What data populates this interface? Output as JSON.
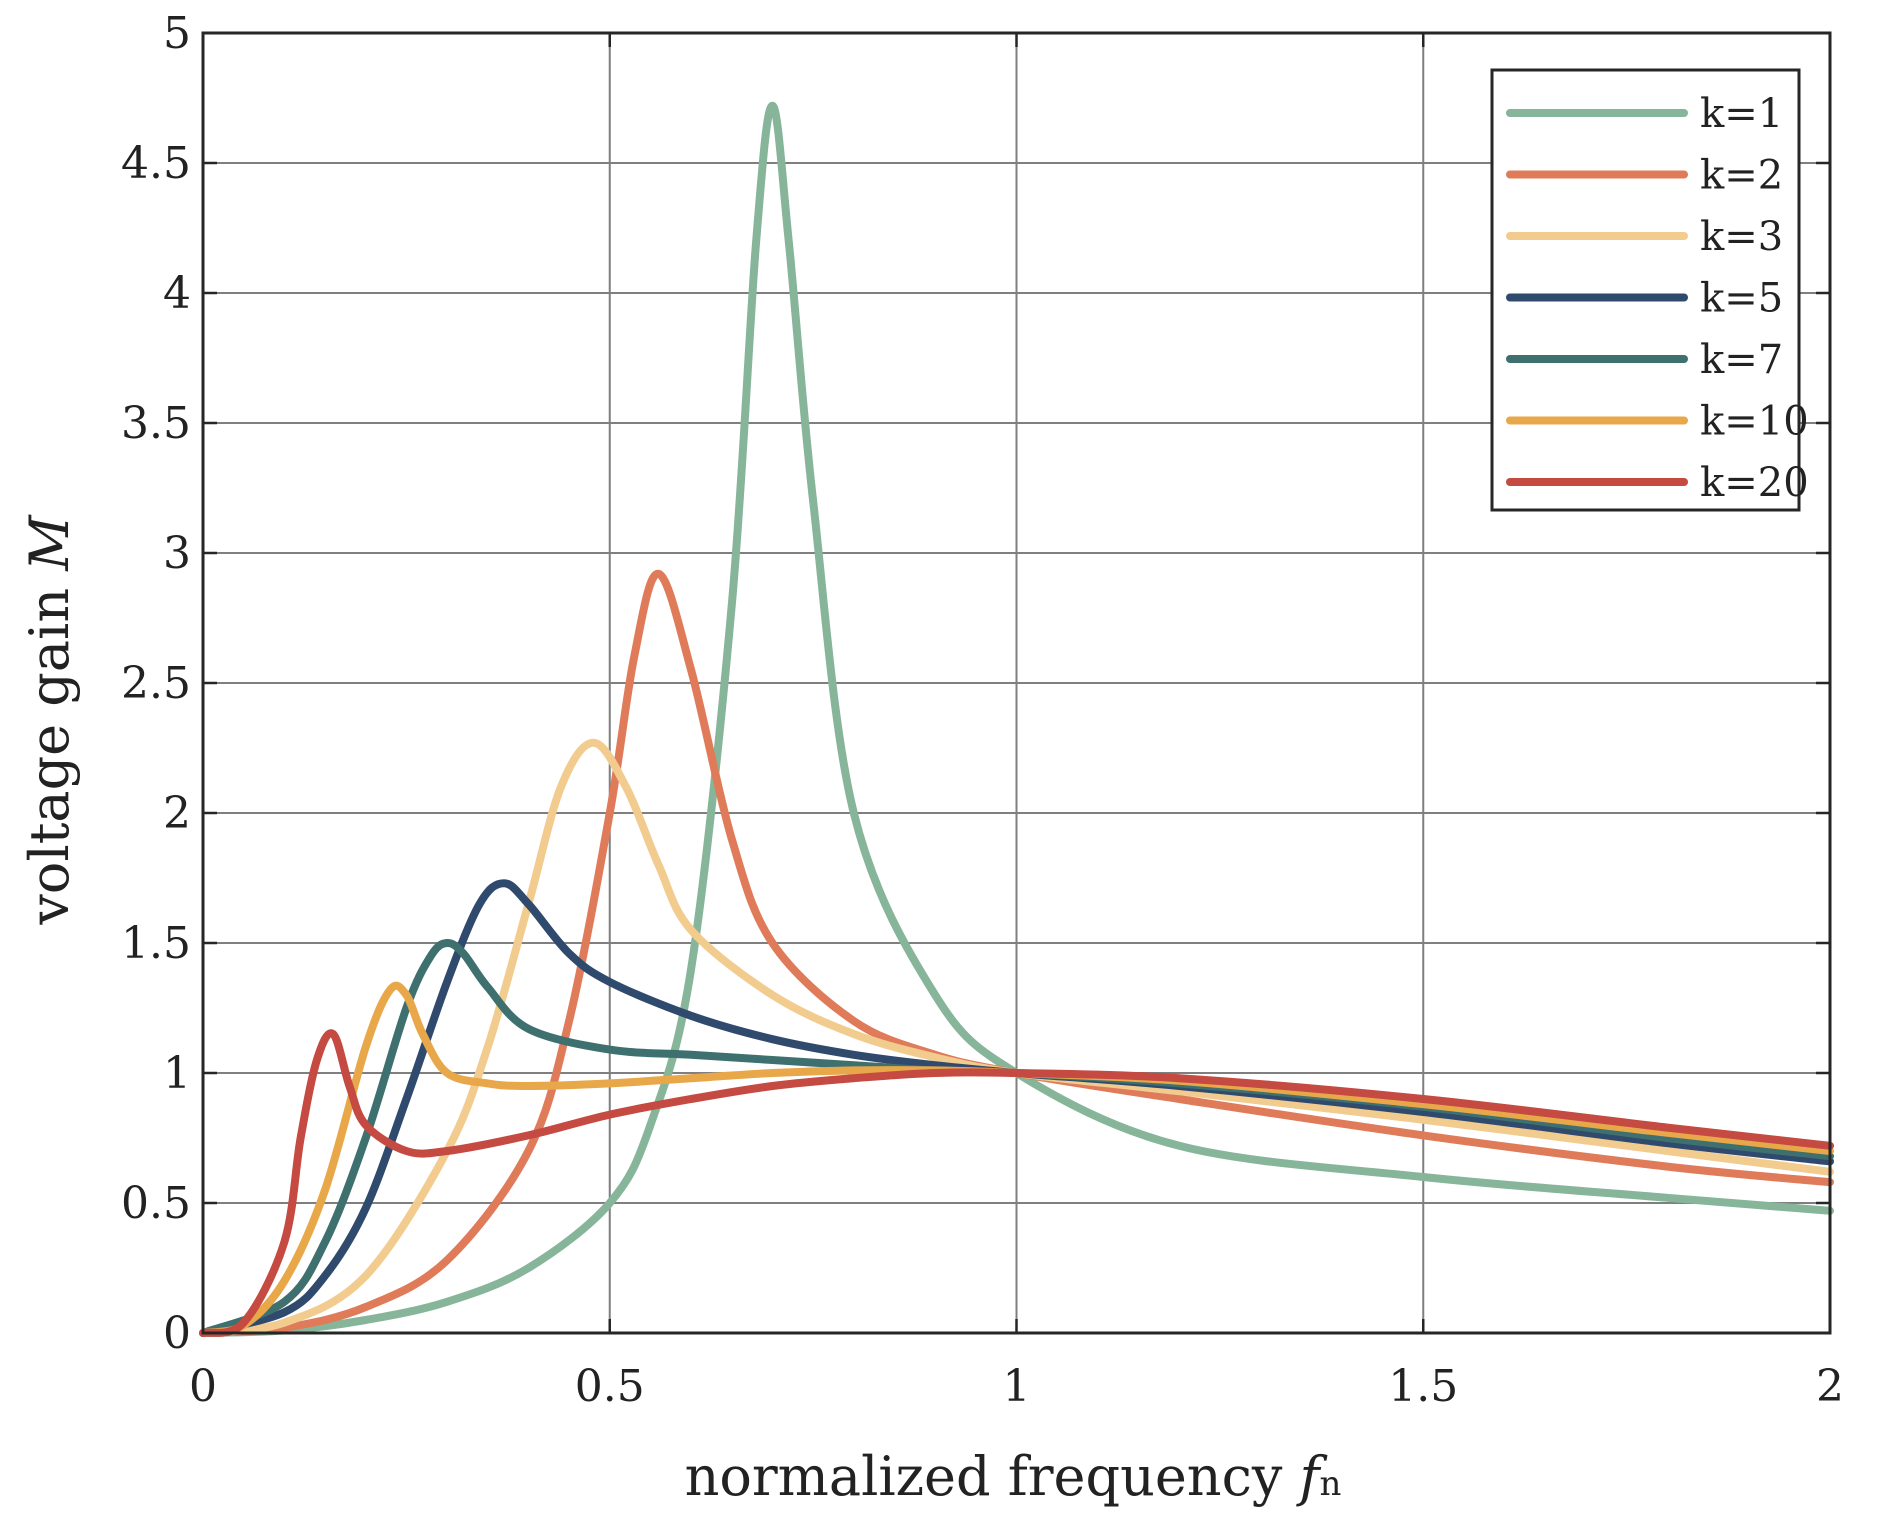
{
  "chart_data": {
    "type": "line",
    "title": "",
    "xlabel": "normalized frequency",
    "xlabel_symbol": "f",
    "xlabel_subscript": "n",
    "ylabel": "voltage gain",
    "ylabel_symbol": "M",
    "xlim": [
      0,
      2
    ],
    "ylim": [
      0,
      5
    ],
    "xticks": [
      0,
      0.5,
      1,
      1.5,
      2
    ],
    "xtick_labels": [
      "0",
      "0.5",
      "1",
      "1.5",
      "2"
    ],
    "yticks": [
      0,
      0.5,
      1,
      1.5,
      2,
      2.5,
      3,
      3.5,
      4,
      4.5,
      5
    ],
    "ytick_labels": [
      "0",
      "0.5",
      "1",
      "1.5",
      "2",
      "2.5",
      "3",
      "3.5",
      "4",
      "4.5",
      "5"
    ],
    "grid": true,
    "legend_position": "top-right",
    "series": [
      {
        "name": "k=1",
        "k": 1,
        "color": "#86b59a",
        "x": [
          0,
          0.1,
          0.2,
          0.3,
          0.4,
          0.5,
          0.55,
          0.6,
          0.65,
          0.68,
          0.7,
          0.72,
          0.75,
          0.8,
          0.9,
          1.0,
          1.2,
          1.5,
          1.8,
          2.0
        ],
        "y": [
          0,
          0.01,
          0.05,
          0.12,
          0.25,
          0.5,
          0.8,
          1.4,
          2.8,
          4.2,
          4.72,
          4.2,
          3.2,
          2.0,
          1.3,
          1.0,
          0.72,
          0.6,
          0.52,
          0.47
        ]
      },
      {
        "name": "k=2",
        "k": 2,
        "color": "#e07b5a",
        "x": [
          0,
          0.1,
          0.2,
          0.3,
          0.4,
          0.45,
          0.5,
          0.53,
          0.56,
          0.6,
          0.65,
          0.7,
          0.8,
          0.9,
          1.0,
          1.2,
          1.5,
          1.8,
          2.0
        ],
        "y": [
          0,
          0.02,
          0.1,
          0.28,
          0.7,
          1.2,
          2.0,
          2.6,
          2.92,
          2.55,
          1.9,
          1.5,
          1.2,
          1.07,
          1.0,
          0.9,
          0.76,
          0.64,
          0.58
        ]
      },
      {
        "name": "k=3",
        "k": 3,
        "color": "#f2cc8f",
        "x": [
          0,
          0.1,
          0.2,
          0.3,
          0.35,
          0.4,
          0.44,
          0.48,
          0.52,
          0.56,
          0.6,
          0.7,
          0.8,
          0.9,
          1.0,
          1.2,
          1.5,
          1.8,
          2.0
        ],
        "y": [
          0,
          0.04,
          0.22,
          0.7,
          1.1,
          1.65,
          2.1,
          2.27,
          2.1,
          1.8,
          1.55,
          1.3,
          1.15,
          1.06,
          1.0,
          0.93,
          0.82,
          0.7,
          0.62
        ]
      },
      {
        "name": "k=5",
        "k": 5,
        "color": "#2f4a6d",
        "x": [
          0,
          0.1,
          0.15,
          0.2,
          0.25,
          0.3,
          0.34,
          0.37,
          0.4,
          0.45,
          0.5,
          0.6,
          0.7,
          0.8,
          0.9,
          1.0,
          1.2,
          1.5,
          1.8,
          2.0
        ],
        "y": [
          0,
          0.08,
          0.22,
          0.48,
          0.9,
          1.35,
          1.65,
          1.73,
          1.65,
          1.46,
          1.35,
          1.22,
          1.13,
          1.07,
          1.03,
          1.0,
          0.95,
          0.85,
          0.73,
          0.66
        ]
      },
      {
        "name": "k=7",
        "k": 7,
        "color": "#3f7070",
        "x": [
          0,
          0.1,
          0.15,
          0.2,
          0.25,
          0.28,
          0.3,
          0.32,
          0.35,
          0.4,
          0.5,
          0.6,
          0.7,
          0.8,
          0.9,
          1.0,
          1.2,
          1.5,
          1.8,
          2.0
        ],
        "y": [
          0,
          0.12,
          0.35,
          0.75,
          1.25,
          1.45,
          1.5,
          1.46,
          1.33,
          1.17,
          1.09,
          1.07,
          1.05,
          1.03,
          1.01,
          1.0,
          0.96,
          0.87,
          0.75,
          0.68
        ]
      },
      {
        "name": "k=10",
        "k": 10,
        "color": "#e8a84a",
        "x": [
          0,
          0.05,
          0.1,
          0.15,
          0.2,
          0.23,
          0.25,
          0.27,
          0.3,
          0.35,
          0.4,
          0.5,
          0.6,
          0.7,
          0.8,
          0.9,
          1.0,
          1.2,
          1.5,
          1.8,
          2.0
        ],
        "y": [
          0,
          0.03,
          0.2,
          0.55,
          1.1,
          1.32,
          1.3,
          1.15,
          1.0,
          0.96,
          0.95,
          0.96,
          0.98,
          1.0,
          1.01,
          1.01,
          1.0,
          0.97,
          0.88,
          0.77,
          0.7
        ]
      },
      {
        "name": "k=20",
        "k": 20,
        "color": "#c44a42",
        "x": [
          0,
          0.05,
          0.1,
          0.12,
          0.14,
          0.16,
          0.18,
          0.2,
          0.25,
          0.3,
          0.4,
          0.5,
          0.6,
          0.7,
          0.8,
          0.9,
          1.0,
          1.2,
          1.5,
          1.8,
          2.0
        ],
        "y": [
          0,
          0.04,
          0.35,
          0.75,
          1.05,
          1.15,
          0.95,
          0.8,
          0.7,
          0.7,
          0.76,
          0.84,
          0.9,
          0.95,
          0.98,
          1.0,
          1.0,
          0.98,
          0.9,
          0.79,
          0.72
        ]
      }
    ]
  }
}
